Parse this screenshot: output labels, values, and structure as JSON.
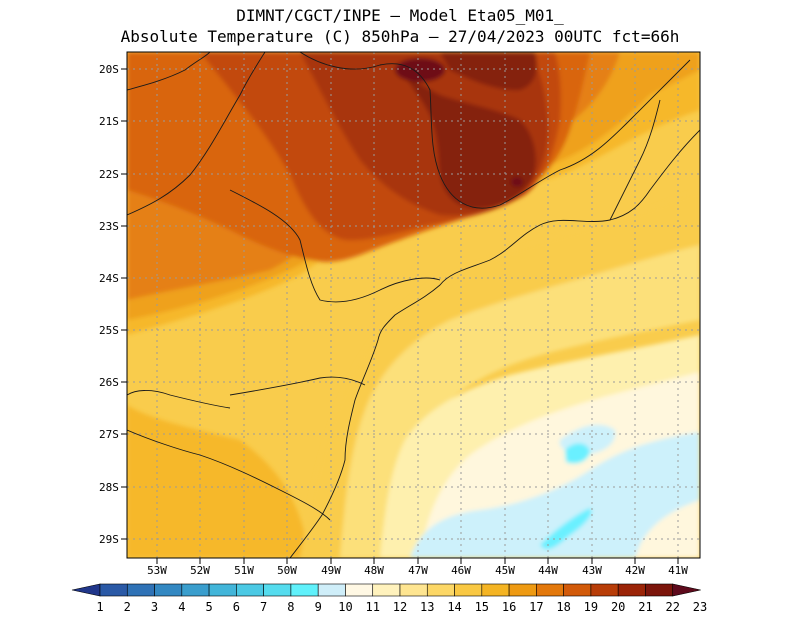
{
  "header": {
    "line1": "DIMNT/CGCT/INPE –  Model Eta05_M01_",
    "line2": "Absolute Temperature (C) 850hPa –  27/04/2023 00UTC fct=66h"
  },
  "map": {
    "lat_labels": [
      "20S",
      "21S",
      "22S",
      "23S",
      "24S",
      "25S",
      "26S",
      "27S",
      "28S",
      "29S"
    ],
    "lon_labels": [
      "53W",
      "52W",
      "51W",
      "50W",
      "49W",
      "48W",
      "47W",
      "46W",
      "45W",
      "44W",
      "43W",
      "42W",
      "41W"
    ],
    "lat_range": [
      -29.4,
      -19.7
    ],
    "lon_range": [
      -53.8,
      -40.6
    ]
  },
  "colorbar": {
    "labels": [
      "1",
      "2",
      "3",
      "4",
      "5",
      "6",
      "7",
      "8",
      "9",
      "10",
      "11",
      "12",
      "13",
      "14",
      "15",
      "16",
      "17",
      "18",
      "19",
      "20",
      "21",
      "22",
      "23"
    ],
    "colors": [
      "#20368a",
      "#2a59a6",
      "#2f72b6",
      "#3388c2",
      "#3a9ecd",
      "#42b5d9",
      "#4bc9e4",
      "#55dcee",
      "#60f1fb",
      "#cfeef9",
      "#fff8e4",
      "#fff2bd",
      "#fee591",
      "#fcd766",
      "#f9c843",
      "#f4b423",
      "#ee9a12",
      "#e3780c",
      "#d25a0a",
      "#b83d08",
      "#9b2407",
      "#7c150b",
      "#5e0a1c"
    ]
  },
  "field_colors": {
    "t23": "#6e0f19",
    "t22": "#852109",
    "t21": "#a83408",
    "t20": "#c24a0a",
    "t19": "#d9650f",
    "t18": "#e58019",
    "t17": "#efa11b",
    "t16": "#f6b82b",
    "t15": "#f9cc4c",
    "t14": "#fce07a",
    "t13": "#fef0ae",
    "t12": "#fff7dd",
    "t11": "#cdf1fb",
    "t10": "#6bf0ff"
  }
}
